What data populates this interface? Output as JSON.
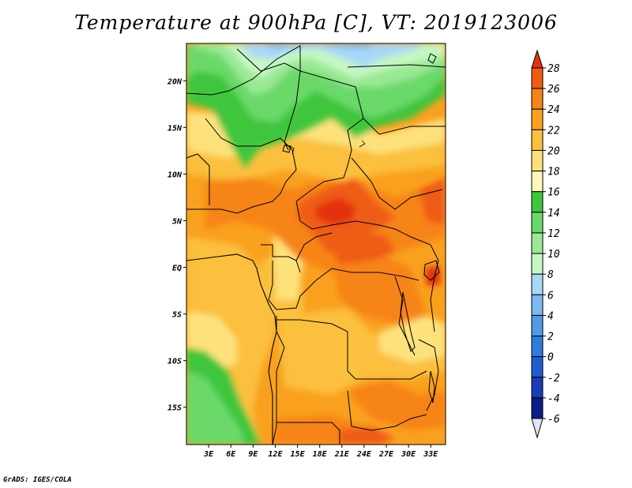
{
  "title": "Temperature at 900hPa [C], VT: 2019123006",
  "credit": "GrADS: IGES/COLA",
  "map": {
    "lat_range": [
      -19,
      24
    ],
    "lon_range": [
      0,
      35
    ],
    "lat_ticks": [
      {
        "value": 20,
        "label": "20N"
      },
      {
        "value": 15,
        "label": "15N"
      },
      {
        "value": 10,
        "label": "10N"
      },
      {
        "value": 5,
        "label": "5N"
      },
      {
        "value": 0,
        "label": "EQ"
      },
      {
        "value": -5,
        "label": "5S"
      },
      {
        "value": -10,
        "label": "10S"
      },
      {
        "value": -15,
        "label": "15S"
      }
    ],
    "lon_ticks": [
      {
        "value": 3,
        "label": "3E"
      },
      {
        "value": 6,
        "label": "6E"
      },
      {
        "value": 9,
        "label": "9E"
      },
      {
        "value": 12,
        "label": "12E"
      },
      {
        "value": 15,
        "label": "15E"
      },
      {
        "value": 18,
        "label": "18E"
      },
      {
        "value": 21,
        "label": "21E"
      },
      {
        "value": 24,
        "label": "24E"
      },
      {
        "value": 27,
        "label": "27E"
      },
      {
        "value": 30,
        "label": "30E"
      },
      {
        "value": 33,
        "label": "33E"
      }
    ]
  },
  "colorbar": {
    "levels": [
      "28",
      "26",
      "24",
      "22",
      "20",
      "18",
      "16",
      "14",
      "12",
      "10",
      "8",
      "6",
      "4",
      "2",
      "0",
      "-2",
      "-4",
      "-6"
    ],
    "colors": [
      "#e3330e",
      "#ef5b12",
      "#f78414",
      "#f9a11e",
      "#fbc03e",
      "#fde27c",
      "#fff7b7",
      "#3fc63c",
      "#6bd96a",
      "#9ae995",
      "#c6f7c2",
      "#a8d8f8",
      "#7db8ef",
      "#5299e6",
      "#2f7bde",
      "#1f5ed1",
      "#1a3cb5",
      "#0d1b86",
      "#e5e2f5"
    ]
  }
}
